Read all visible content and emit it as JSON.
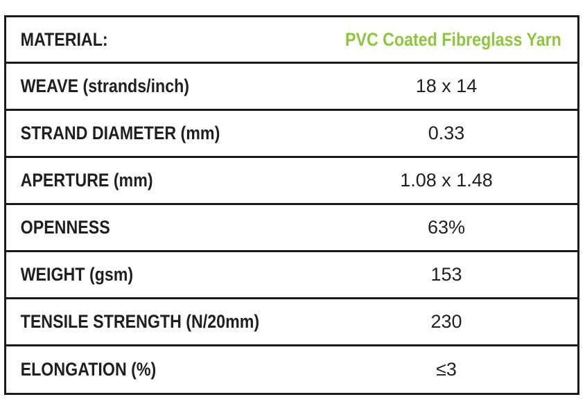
{
  "colors": {
    "accent": "#8cc63f",
    "text": "#1f1f1f",
    "border": "#1a1a1a"
  },
  "header": {
    "label": "MATERIAL:",
    "value": "PVC Coated Fibreglass Yarn"
  },
  "rows": [
    {
      "label": "WEAVE (strands/inch)",
      "value": "18 x 14"
    },
    {
      "label": "STRAND DIAMETER (mm)",
      "value": "0.33"
    },
    {
      "label": "APERTURE (mm)",
      "value": "1.08 x 1.48"
    },
    {
      "label": "OPENNESS",
      "value": "63%"
    },
    {
      "label": "WEIGHT (gsm)",
      "value": "153"
    },
    {
      "label": "TENSILE STRENGTH (N/20mm)",
      "value": "230"
    },
    {
      "label": "ELONGATION (%)",
      "value": "≤3"
    }
  ]
}
